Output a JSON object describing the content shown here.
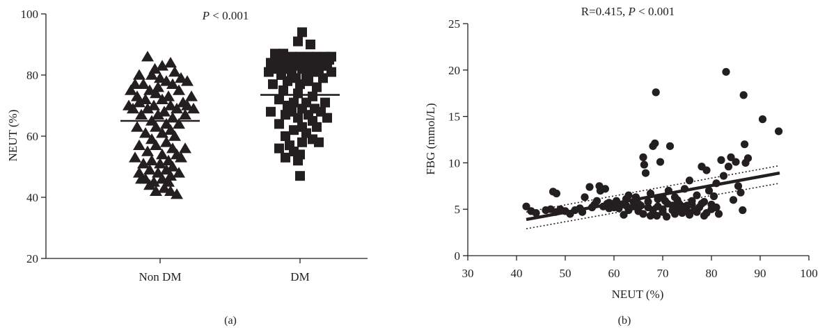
{
  "chart_data": [
    {
      "type": "scatter",
      "panel_label": "(a)",
      "annotation": {
        "prefix": "P",
        "text": " < 0.001"
      },
      "ylabel": "NEUT (%)",
      "xlabel": "",
      "ylim": [
        20,
        100
      ],
      "yticks": [
        20,
        40,
        60,
        80,
        100
      ],
      "categories": [
        "Non DM",
        "DM"
      ],
      "grid": false,
      "series": [
        {
          "category": "Non DM",
          "marker": "triangle",
          "mean": 65,
          "points": [
            [
              -0.12,
              86
            ],
            [
              0.02,
              83
            ],
            [
              0.1,
              84
            ],
            [
              -0.05,
              82
            ],
            [
              0.14,
              81
            ],
            [
              -0.2,
              80
            ],
            [
              -0.08,
              80
            ],
            [
              0.0,
              79
            ],
            [
              0.2,
              79
            ],
            [
              0.26,
              78
            ],
            [
              -0.24,
              77
            ],
            [
              -0.16,
              77
            ],
            [
              0.06,
              78
            ],
            [
              -0.02,
              76
            ],
            [
              0.12,
              77
            ],
            [
              -0.28,
              75
            ],
            [
              -0.1,
              75
            ],
            [
              0.18,
              75
            ],
            [
              -0.22,
              73
            ],
            [
              -0.04,
              74
            ],
            [
              0.08,
              73
            ],
            [
              0.3,
              73
            ],
            [
              -0.14,
              72
            ],
            [
              0.02,
              72
            ],
            [
              0.22,
              71
            ],
            [
              -0.3,
              70
            ],
            [
              -0.2,
              71
            ],
            [
              -0.06,
              70
            ],
            [
              0.1,
              70
            ],
            [
              0.26,
              70
            ],
            [
              -0.26,
              69
            ],
            [
              -0.12,
              69
            ],
            [
              0.04,
              68
            ],
            [
              0.16,
              69
            ],
            [
              0.32,
              69
            ],
            [
              -0.18,
              67
            ],
            [
              -0.02,
              67
            ],
            [
              0.12,
              66
            ],
            [
              0.24,
              67
            ],
            [
              -0.08,
              65
            ],
            [
              0.06,
              64
            ],
            [
              0.18,
              64
            ],
            [
              -0.22,
              63
            ],
            [
              -0.04,
              63
            ],
            [
              0.1,
              62
            ],
            [
              -0.14,
              61
            ],
            [
              0.02,
              61
            ],
            [
              0.14,
              60
            ],
            [
              -0.08,
              59
            ],
            [
              0.06,
              58
            ],
            [
              -0.2,
              57
            ],
            [
              -0.04,
              57
            ],
            [
              0.12,
              56
            ],
            [
              0.24,
              56
            ],
            [
              -0.12,
              55
            ],
            [
              0.02,
              54
            ],
            [
              0.16,
              54
            ],
            [
              -0.24,
              53
            ],
            [
              -0.08,
              52
            ],
            [
              0.08,
              52
            ],
            [
              0.2,
              53
            ],
            [
              -0.16,
              51
            ],
            [
              0.0,
              51
            ],
            [
              0.12,
              50
            ],
            [
              -0.1,
              49
            ],
            [
              0.06,
              49
            ],
            [
              -0.2,
              48
            ],
            [
              -0.02,
              48
            ],
            [
              0.1,
              47
            ],
            [
              -0.14,
              46
            ],
            [
              0.02,
              46
            ],
            [
              -0.06,
              45
            ],
            [
              0.08,
              45
            ],
            [
              -0.1,
              44
            ],
            [
              0.04,
              43
            ],
            [
              -0.04,
              42
            ],
            [
              0.1,
              42
            ],
            [
              0.16,
              41
            ],
            [
              -0.18,
              46
            ],
            [
              0.18,
              48
            ]
          ]
        },
        {
          "category": "DM",
          "marker": "square",
          "mean": 73.5,
          "points": [
            [
              0.02,
              94
            ],
            [
              -0.02,
              91
            ],
            [
              0.1,
              90
            ],
            [
              -0.24,
              87
            ],
            [
              -0.16,
              87
            ],
            [
              -0.08,
              86
            ],
            [
              0.0,
              86
            ],
            [
              0.08,
              86
            ],
            [
              0.16,
              86
            ],
            [
              0.24,
              86
            ],
            [
              0.3,
              86
            ],
            [
              -0.2,
              85
            ],
            [
              -0.04,
              85
            ],
            [
              0.12,
              85
            ],
            [
              0.28,
              85
            ],
            [
              -0.28,
              84
            ],
            [
              -0.12,
              84
            ],
            [
              0.04,
              84
            ],
            [
              0.2,
              84
            ],
            [
              -0.06,
              83
            ],
            [
              0.1,
              83
            ],
            [
              0.26,
              83
            ],
            [
              -0.22,
              82
            ],
            [
              -0.14,
              82
            ],
            [
              0.02,
              82
            ],
            [
              0.18,
              82
            ],
            [
              -0.3,
              81
            ],
            [
              -0.08,
              81
            ],
            [
              0.14,
              81
            ],
            [
              0.3,
              81
            ],
            [
              -0.18,
              80
            ],
            [
              0.06,
              80
            ],
            [
              -0.04,
              79
            ],
            [
              0.22,
              79
            ],
            [
              -0.12,
              78
            ],
            [
              0.08,
              78
            ],
            [
              -0.26,
              77
            ],
            [
              0.0,
              77
            ],
            [
              0.16,
              76
            ],
            [
              -0.16,
              75
            ],
            [
              -0.02,
              74
            ],
            [
              0.12,
              73
            ],
            [
              -0.2,
              72
            ],
            [
              -0.06,
              71
            ],
            [
              0.06,
              71
            ],
            [
              0.24,
              71
            ],
            [
              -0.12,
              70
            ],
            [
              0.02,
              69
            ],
            [
              0.14,
              69
            ],
            [
              0.2,
              68
            ],
            [
              -0.28,
              68
            ],
            [
              -0.08,
              68
            ],
            [
              -0.14,
              67
            ],
            [
              0.08,
              67
            ],
            [
              0.26,
              66
            ],
            [
              -0.02,
              66
            ],
            [
              0.12,
              65
            ],
            [
              -0.2,
              64
            ],
            [
              0.02,
              63
            ],
            [
              0.16,
              63
            ],
            [
              -0.06,
              62
            ],
            [
              0.06,
              61
            ],
            [
              -0.14,
              60
            ],
            [
              0.12,
              59
            ],
            [
              0.18,
              58
            ],
            [
              0.02,
              58
            ],
            [
              -0.1,
              57
            ],
            [
              -0.2,
              56
            ],
            [
              -0.06,
              55
            ],
            [
              0.0,
              54
            ],
            [
              -0.14,
              53
            ],
            [
              -0.02,
              52
            ],
            [
              0.0,
              47
            ]
          ]
        }
      ]
    },
    {
      "type": "scatter",
      "panel_label": "(b)",
      "annotation": {
        "prefix": "R=0.415, ",
        "italic": "P",
        "text": " < 0.001"
      },
      "xlabel": "NEUT (%)",
      "ylabel": "FBG (mmol/L)",
      "xlim": [
        30,
        100
      ],
      "ylim": [
        0,
        25
      ],
      "xticks": [
        30,
        40,
        50,
        60,
        70,
        80,
        90,
        100
      ],
      "yticks": [
        0,
        5,
        10,
        15,
        20,
        25
      ],
      "grid": false,
      "regression": {
        "x": [
          42,
          94
        ],
        "y": [
          3.9,
          8.9
        ]
      },
      "ci_upper": {
        "x": [
          42,
          94
        ],
        "y": [
          4.7,
          9.7
        ]
      },
      "ci_lower": {
        "x": [
          42,
          94
        ],
        "y": [
          2.9,
          7.8
        ]
      },
      "points": [
        [
          42,
          5.3
        ],
        [
          43,
          4.8
        ],
        [
          44,
          4.6
        ],
        [
          46,
          4.9
        ],
        [
          47,
          5.0
        ],
        [
          47.5,
          6.9
        ],
        [
          48.2,
          6.7
        ],
        [
          48,
          4.7
        ],
        [
          49,
          5.0
        ],
        [
          50,
          4.8
        ],
        [
          51,
          4.5
        ],
        [
          52,
          4.9
        ],
        [
          53,
          5.1
        ],
        [
          54,
          6.3
        ],
        [
          55,
          7.4
        ],
        [
          55.5,
          5.2
        ],
        [
          56,
          5.5
        ],
        [
          57,
          7.5
        ],
        [
          57.2,
          7.0
        ],
        [
          57.8,
          5.3
        ],
        [
          58.2,
          7.2
        ],
        [
          58.6,
          5.6
        ],
        [
          59,
          5.1
        ],
        [
          60,
          5.6
        ],
        [
          60.5,
          5.9
        ],
        [
          61,
          5.1
        ],
        [
          62,
          4.4
        ],
        [
          62.5,
          6.1
        ],
        [
          63,
          6.5
        ],
        [
          64,
          5.8
        ],
        [
          64.5,
          6.3
        ],
        [
          65,
          4.8
        ],
        [
          65.5,
          5.4
        ],
        [
          66,
          10.6
        ],
        [
          66.2,
          9.8
        ],
        [
          66.5,
          8.9
        ],
        [
          67,
          5.2
        ],
        [
          67.5,
          4.3
        ],
        [
          68,
          11.8
        ],
        [
          68.4,
          12.1
        ],
        [
          68.6,
          17.6
        ],
        [
          68.8,
          4.3
        ],
        [
          69,
          5.3
        ],
        [
          69.5,
          10.1
        ],
        [
          70,
          5.0
        ],
        [
          70.5,
          5.9
        ],
        [
          70.8,
          4.2
        ],
        [
          71.2,
          7.0
        ],
        [
          71.5,
          11.8
        ],
        [
          72,
          5.4
        ],
        [
          72.5,
          6.3
        ],
        [
          73,
          5.1
        ],
        [
          73.5,
          5.5
        ],
        [
          74,
          4.6
        ],
        [
          74.5,
          7.2
        ],
        [
          75,
          5.4
        ],
        [
          75.5,
          8.1
        ],
        [
          76,
          5.5
        ],
        [
          76.5,
          4.9
        ],
        [
          77,
          6.5
        ],
        [
          77.5,
          5.2
        ],
        [
          78,
          9.6
        ],
        [
          78.5,
          4.3
        ],
        [
          79,
          9.2
        ],
        [
          79.5,
          7.0
        ],
        [
          80,
          5.0
        ],
        [
          80.5,
          6.4
        ],
        [
          81,
          7.8
        ],
        [
          81.5,
          4.5
        ],
        [
          82,
          10.3
        ],
        [
          82.5,
          8.6
        ],
        [
          83,
          19.8
        ],
        [
          83.5,
          9.6
        ],
        [
          84,
          10.6
        ],
        [
          84.5,
          6.0
        ],
        [
          85,
          10.1
        ],
        [
          85.5,
          7.5
        ],
        [
          86,
          6.8
        ],
        [
          86.4,
          4.9
        ],
        [
          86.6,
          17.3
        ],
        [
          86.8,
          12.0
        ],
        [
          87,
          10.0
        ],
        [
          87.5,
          10.5
        ],
        [
          90.5,
          14.7
        ],
        [
          93.8,
          13.4
        ],
        [
          60,
          5.2
        ],
        [
          61.5,
          5.5
        ],
        [
          63,
          4.9
        ],
        [
          64,
          5.3
        ],
        [
          65,
          5.6
        ],
        [
          66,
          4.5
        ],
        [
          67,
          5.8
        ],
        [
          68,
          4.9
        ],
        [
          69,
          6.1
        ],
        [
          70,
          4.7
        ],
        [
          71,
          5.6
        ],
        [
          72,
          4.9
        ],
        [
          73,
          6.0
        ],
        [
          74,
          5.3
        ],
        [
          75,
          4.8
        ],
        [
          76,
          5.9
        ],
        [
          77,
          4.7
        ],
        [
          78,
          5.6
        ],
        [
          79,
          4.6
        ],
        [
          80,
          5.5
        ],
        [
          81,
          5.2
        ],
        [
          72.5,
          4.5
        ],
        [
          75.5,
          4.4
        ],
        [
          78.5,
          5.8
        ],
        [
          70,
          6.3
        ],
        [
          67.5,
          6.7
        ],
        [
          62.5,
          5.4
        ],
        [
          59,
          5.7
        ],
        [
          56.5,
          5.9
        ],
        [
          53.5,
          4.7
        ]
      ]
    }
  ]
}
